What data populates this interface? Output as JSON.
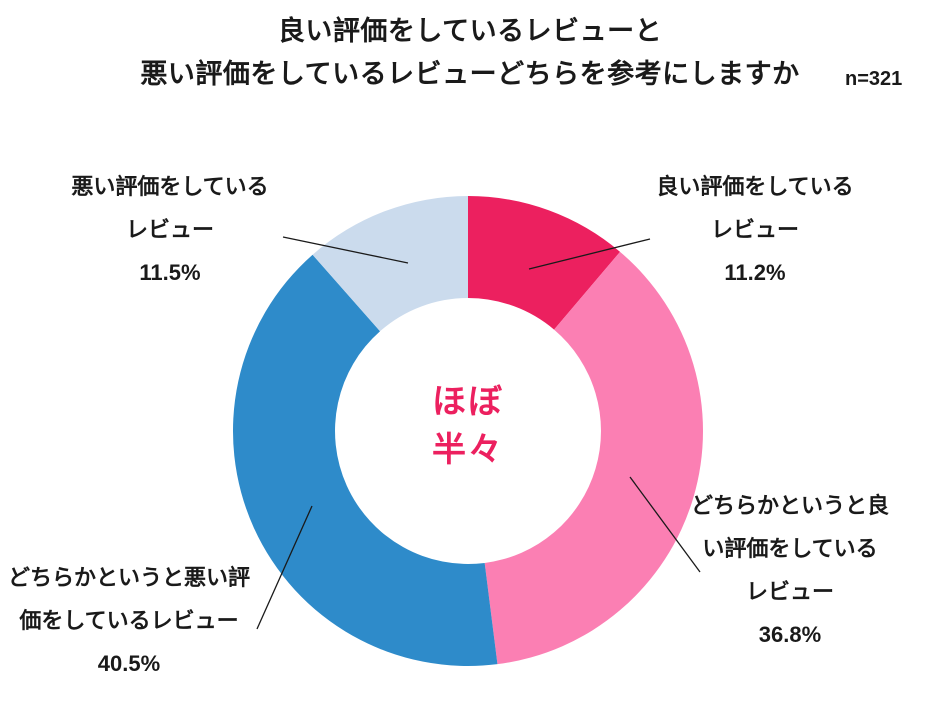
{
  "header": {
    "title_line1": "良い評価をしているレビューと",
    "title_line2": "悪い評価をしているレビューどちらを参考にしますか",
    "sample_size": "n=321"
  },
  "chart_data": {
    "type": "pie",
    "subtype": "donut",
    "title": "良い評価をしているレビューと悪い評価をしているレビューどちらを参考にしますか",
    "sample_size": "n=321",
    "direction": "clockwise",
    "start_angle_deg": 0,
    "legend": "none",
    "categories": [
      "良い評価をしているレビュー",
      "どちらかというと良い評価をしているレビュー",
      "どちらかというと悪い評価をしているレビュー",
      "悪い評価をしているレビュー"
    ],
    "values": [
      11.2,
      36.8,
      40.5,
      11.5
    ],
    "colors": [
      "#EC205F",
      "#FB7FB3",
      "#2E8BCA",
      "#CBDBED"
    ],
    "slice_ids": [
      "positive",
      "somewhat-positive",
      "somewhat-negative",
      "negative"
    ],
    "center_label": {
      "line1": "ほぼ",
      "line2": "半々",
      "color": "#EC205F"
    },
    "callouts": {
      "top_left": {
        "lines": [
          "悪い評価をしている",
          "レビュー",
          "11.5%"
        ]
      },
      "top_right": {
        "lines": [
          "良い評価をしている",
          "レビュー",
          "11.2%"
        ]
      },
      "right": {
        "lines": [
          "どちらかというと良",
          "い評価をしている",
          "レビュー",
          "36.8%"
        ]
      },
      "bottom_left": {
        "lines": [
          "どちらかというと悪い評",
          "価をしているレビュー",
          "40.5%"
        ]
      }
    }
  }
}
